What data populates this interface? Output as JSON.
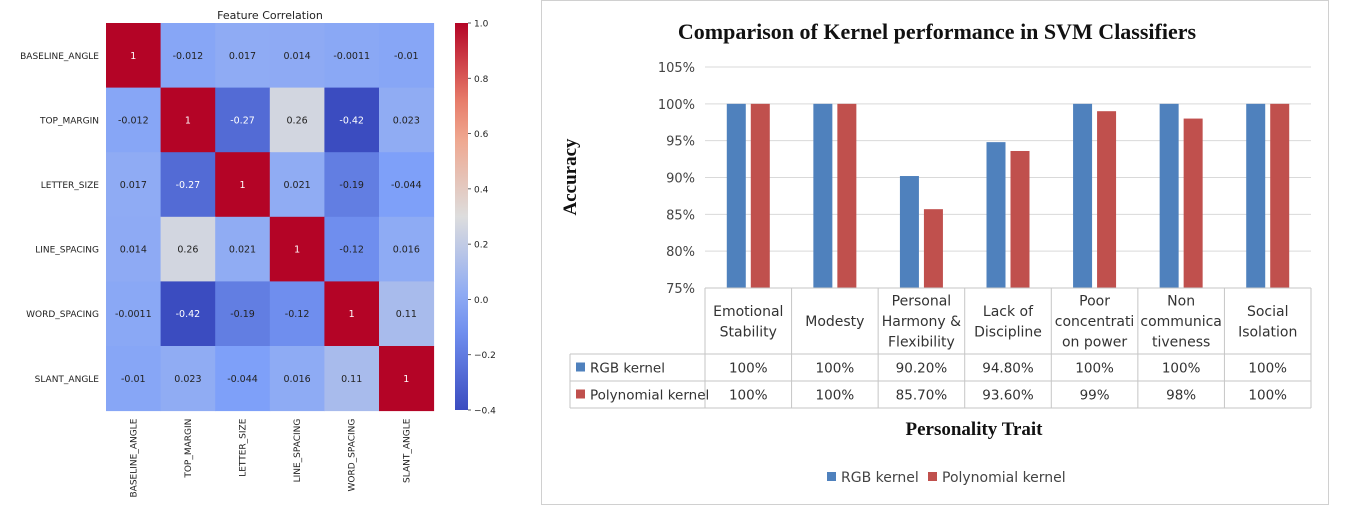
{
  "chart_data": [
    {
      "type": "heatmap",
      "title": "Feature Correlation",
      "rows": [
        "BASELINE_ANGLE",
        "TOP_MARGIN",
        "LETTER_SIZE",
        "LINE_SPACING",
        "WORD_SPACING",
        "SLANT_ANGLE"
      ],
      "cols": [
        "BASELINE_ANGLE",
        "TOP_MARGIN",
        "LETTER_SIZE",
        "LINE_SPACING",
        "WORD_SPACING",
        "SLANT_ANGLE"
      ],
      "values": [
        [
          1,
          -0.012,
          0.017,
          0.014,
          -0.0011,
          -0.01
        ],
        [
          -0.012,
          1,
          -0.27,
          0.26,
          -0.42,
          0.023
        ],
        [
          0.017,
          -0.27,
          1,
          0.021,
          -0.19,
          -0.044
        ],
        [
          0.014,
          0.26,
          0.021,
          1,
          -0.12,
          0.016
        ],
        [
          -0.0011,
          -0.42,
          -0.19,
          -0.12,
          1,
          0.11
        ],
        [
          -0.01,
          0.023,
          -0.044,
          0.016,
          0.11,
          1
        ]
      ],
      "value_labels": [
        [
          "1",
          "-0.012",
          "0.017",
          "0.014",
          "-0.0011",
          "-0.01"
        ],
        [
          "-0.012",
          "1",
          "-0.27",
          "0.26",
          "-0.42",
          "0.023"
        ],
        [
          "0.017",
          "-0.27",
          "1",
          "0.021",
          "-0.19",
          "-0.044"
        ],
        [
          "0.014",
          "0.26",
          "0.021",
          "1",
          "-0.12",
          "0.016"
        ],
        [
          "-0.0011",
          "-0.42",
          "-0.19",
          "-0.12",
          "1",
          "0.11"
        ],
        [
          "-0.01",
          "0.023",
          "-0.044",
          "0.016",
          "0.11",
          "1"
        ]
      ],
      "colorbar": {
        "min": -0.4,
        "max": 1.0,
        "ticks": [
          1.0,
          0.8,
          0.6,
          0.4,
          0.2,
          0.0,
          -0.2,
          -0.4
        ],
        "tick_labels": [
          "1.0",
          "0.8",
          "0.6",
          "0.4",
          "0.2",
          "0.0",
          "−0.2",
          "−0.4"
        ],
        "colormap": "coolwarm"
      }
    },
    {
      "type": "bar",
      "title": "Comparison of Kernel  performance in SVM Classifiers",
      "xlabel": "Personality Trait",
      "ylabel": "Accuracy",
      "ylim": [
        75,
        105
      ],
      "yticks": [
        "75%",
        "80%",
        "85%",
        "90%",
        "95%",
        "100%",
        "105%"
      ],
      "categories": [
        [
          "Emotional",
          "Stability"
        ],
        [
          "Modesty"
        ],
        [
          "Personal",
          "Harmony &",
          "Flexibility"
        ],
        [
          "Lack of",
          "Discipline"
        ],
        [
          "Poor",
          "concentrati",
          "on power"
        ],
        [
          "Non",
          "communica",
          "tiveness"
        ],
        [
          "Social",
          "Isolation"
        ]
      ],
      "series": [
        {
          "name": "RGB kernel",
          "color": "#4f81bd",
          "values": [
            100,
            100,
            90.2,
            94.8,
            100,
            100,
            100
          ],
          "labels": [
            "100%",
            "100%",
            "90.20%",
            "94.80%",
            "100%",
            "100%",
            "100%"
          ]
        },
        {
          "name": "Polynomial kernel",
          "color": "#c0504d",
          "values": [
            100,
            100,
            85.7,
            93.6,
            99,
            98,
            100
          ],
          "labels": [
            "100%",
            "100%",
            "85.70%",
            "93.60%",
            "99%",
            "98%",
            "100%"
          ]
        }
      ],
      "grid": true,
      "legend": "bottom"
    }
  ]
}
